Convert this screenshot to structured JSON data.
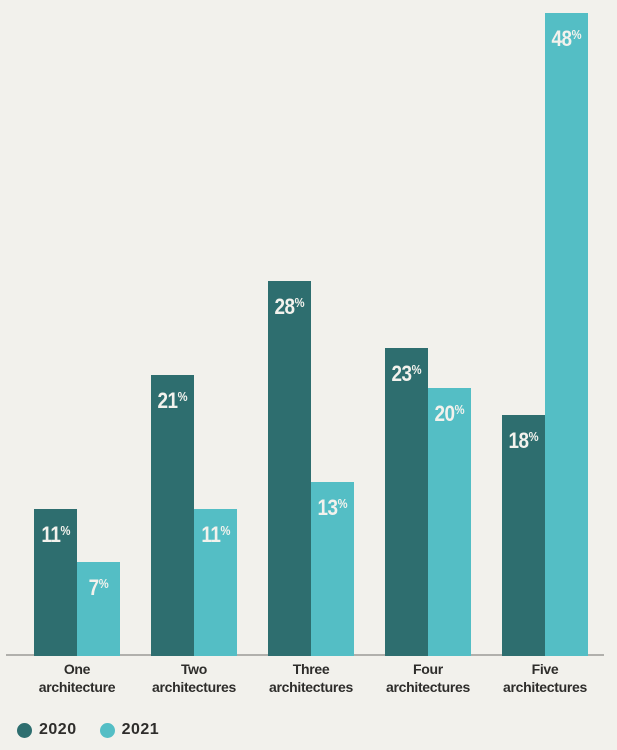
{
  "colors": {
    "background": "#f2f1ec",
    "axis_line": "#b1b0ac",
    "category_text": "#2e2d2b",
    "value_text": "#f3f2ed",
    "series_2020": "#2e6e6f",
    "series_2021": "#54bec5"
  },
  "chart_data": {
    "type": "bar",
    "title": "",
    "xlabel": "",
    "ylabel": "",
    "categories": [
      "One architecture",
      "Two architectures",
      "Three architectures",
      "Four architectures",
      "Five architectures"
    ],
    "categories_lines": [
      [
        "One",
        "architecture"
      ],
      [
        "Two",
        "architectures"
      ],
      [
        "Three",
        "architectures"
      ],
      [
        "Four",
        "architectures"
      ],
      [
        "Five",
        "architectures"
      ]
    ],
    "series": [
      {
        "name": "2020",
        "color": "#2e6e6f",
        "values": [
          11,
          21,
          28,
          23,
          18
        ]
      },
      {
        "name": "2021",
        "color": "#54bec5",
        "values": [
          7,
          11,
          13,
          20,
          48
        ]
      }
    ],
    "value_suffix": "%",
    "ylim": [
      0,
      49
    ],
    "grid": false,
    "legend_position": "bottom-left"
  }
}
